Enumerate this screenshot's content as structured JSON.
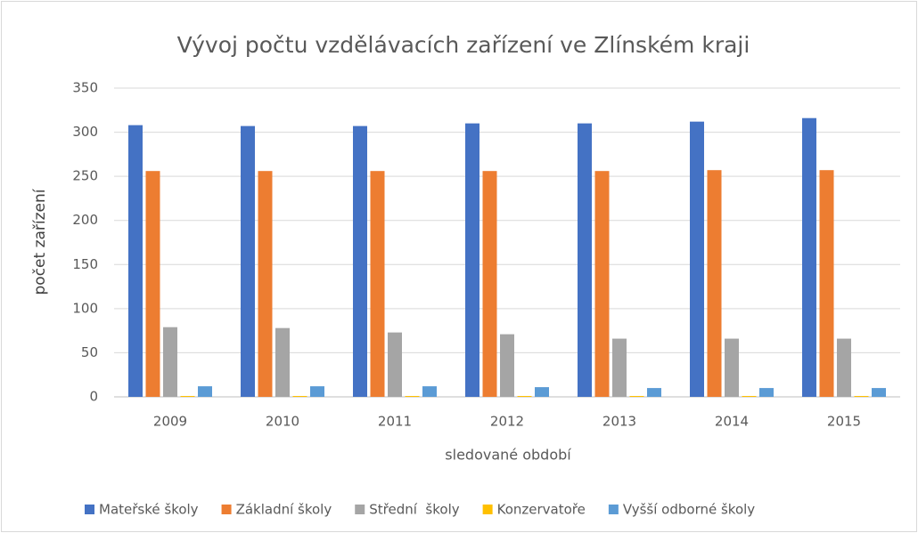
{
  "chart_data": {
    "type": "bar",
    "title": "Vývoj počtu vzdělávacích zařízení ve Zlínském kraji",
    "x_label": "sledované období",
    "y_label": "počet zařízení",
    "categories": [
      "2009",
      "2010",
      "2011",
      "2012",
      "2013",
      "2014",
      "2015"
    ],
    "series": [
      {
        "name": "Mateřské školy",
        "color": "#4472c4",
        "values": [
          308,
          307,
          307,
          310,
          310,
          312,
          316
        ]
      },
      {
        "name": "Základní školy",
        "color": "#ed7d31",
        "values": [
          256,
          256,
          256,
          256,
          256,
          257,
          257
        ]
      },
      {
        "name": "Střední  školy",
        "color": "#a5a5a5",
        "values": [
          79,
          78,
          73,
          71,
          66,
          66,
          66
        ]
      },
      {
        "name": "Konzervatoře",
        "color": "#ffc000",
        "values": [
          1,
          1,
          1,
          1,
          1,
          1,
          1
        ]
      },
      {
        "name": "Vyšší odborné školy",
        "color": "#5b9bd5",
        "values": [
          12,
          12,
          12,
          11,
          10,
          10,
          10
        ]
      }
    ],
    "ylim": [
      0,
      350
    ],
    "yticks": [
      0,
      50,
      100,
      150,
      200,
      250,
      300,
      350
    ],
    "grid": true,
    "legend": "bottom"
  }
}
